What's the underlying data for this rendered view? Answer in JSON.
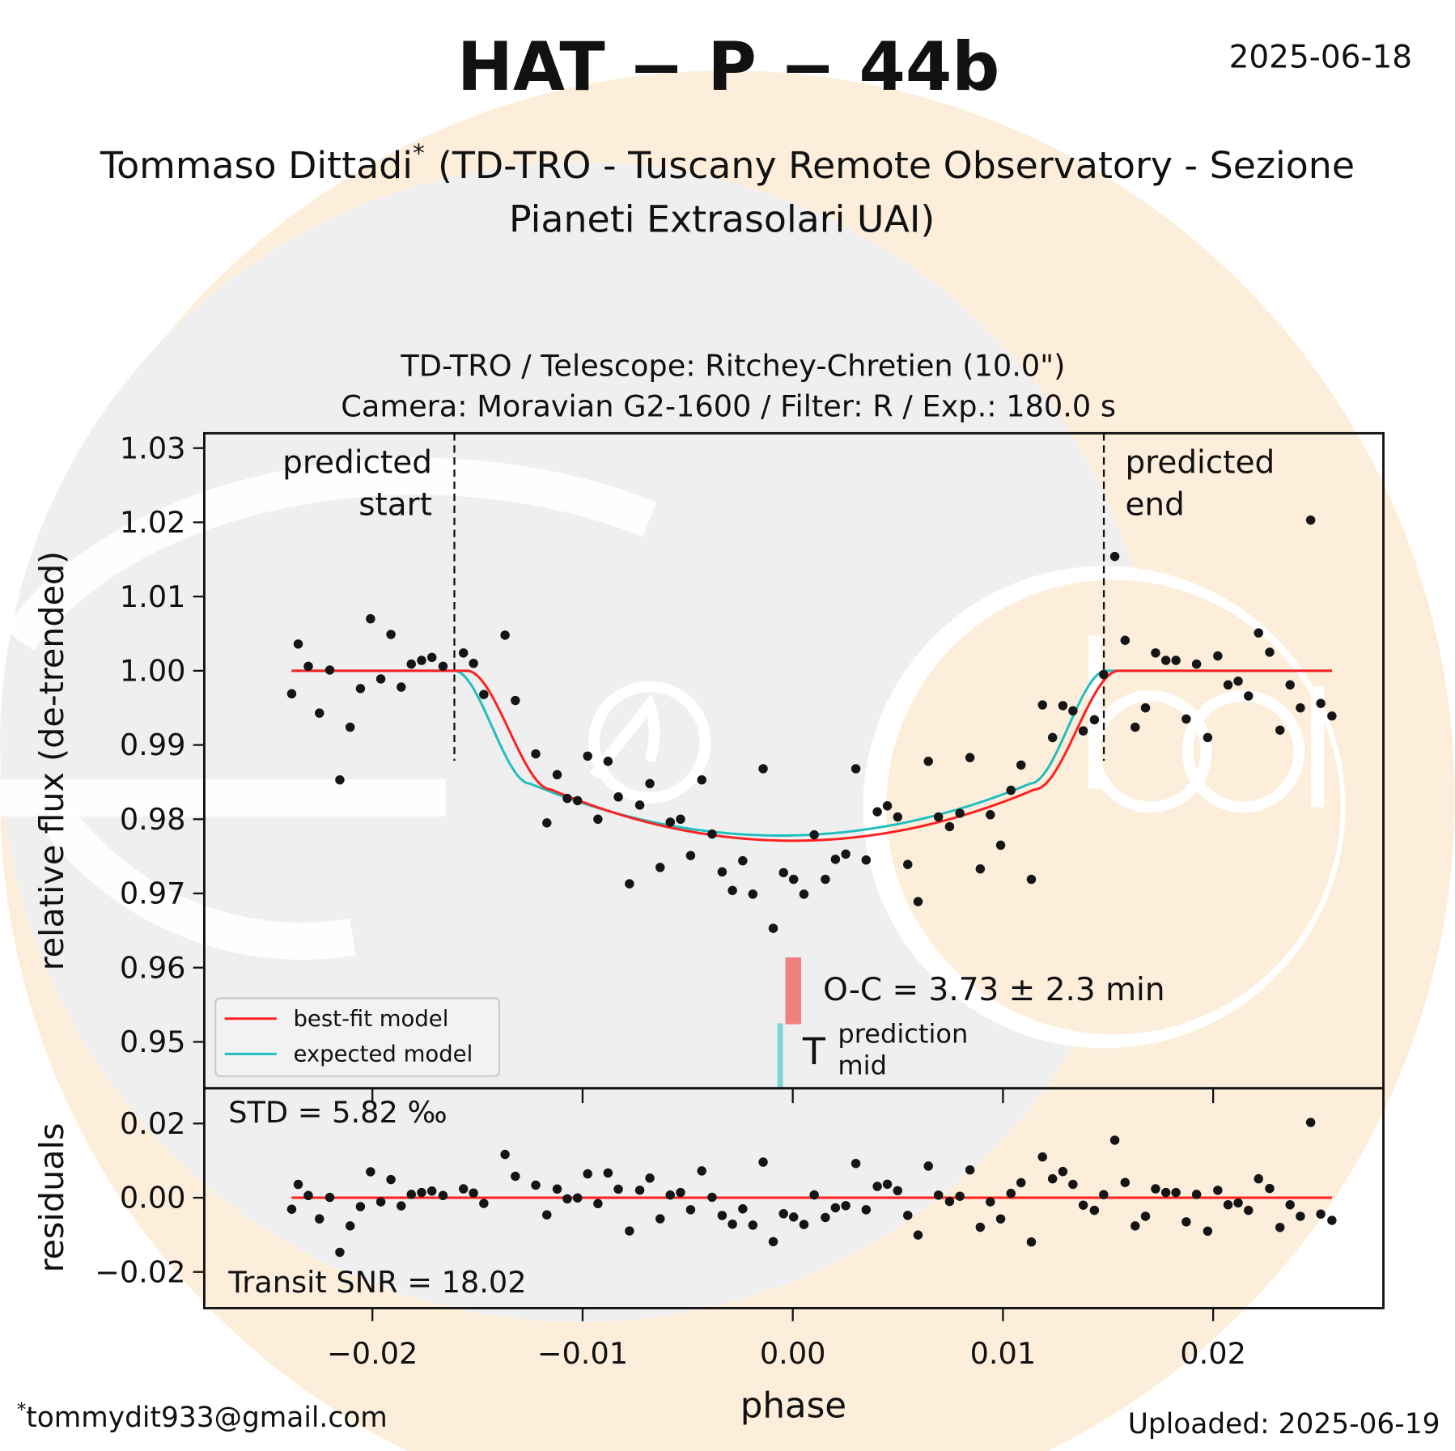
{
  "header": {
    "title": "HAT − P − 44b",
    "date": "2025-06-18",
    "author": "Tommaso Dittadi",
    "author_mark": "*",
    "observatory_line1": "(TD-TRO - Tuscany Remote Observatory - Sezione",
    "observatory_line2": "Pianeti Extrasolari UAI)"
  },
  "footer": {
    "email_mark": "*",
    "email": "tommydit933@gmail.com",
    "uploaded": "Uploaded: 2025-06-19"
  },
  "chart_data": {
    "type": "scatter",
    "subtitle_line1": "TD-TRO / Telescope: Ritchey-Chretien (10.0\")",
    "subtitle_line2": "Camera: Moravian G2-1600 / Filter: R / Exp.: 180.0 s",
    "xlabel": "phase",
    "ylabel": "relative flux (de-trended)",
    "residuals_ylabel": "residuals",
    "xlim": [
      -0.028,
      0.0281
    ],
    "ylim": [
      0.94375,
      1.032
    ],
    "residuals_ylim": [
      -0.02975,
      0.0295
    ],
    "xticks": [
      {
        "v": -0.02,
        "label": "−0.02"
      },
      {
        "v": -0.01,
        "label": "−0.01"
      },
      {
        "v": 0.0,
        "label": "0.00"
      },
      {
        "v": 0.01,
        "label": "0.01"
      },
      {
        "v": 0.02,
        "label": "0.02"
      }
    ],
    "yticks": [
      {
        "v": 1.03,
        "label": "1.03"
      },
      {
        "v": 1.02,
        "label": "1.02"
      },
      {
        "v": 1.01,
        "label": "1.01"
      },
      {
        "v": 1.0,
        "label": "1.00"
      },
      {
        "v": 0.99,
        "label": "0.99"
      },
      {
        "v": 0.98,
        "label": "0.98"
      },
      {
        "v": 0.97,
        "label": "0.97"
      },
      {
        "v": 0.96,
        "label": "0.96"
      },
      {
        "v": 0.95,
        "label": "0.95"
      }
    ],
    "residuals_yticks": [
      {
        "v": 0.02,
        "label": "0.02"
      },
      {
        "v": 0.0,
        "label": "0.00"
      },
      {
        "v": -0.02,
        "label": "−0.02"
      }
    ],
    "predicted_start": {
      "phase": -0.0161,
      "label1": "predicted",
      "label2": "start"
    },
    "predicted_end": {
      "phase": 0.0148,
      "label1": "predicted",
      "label2": "end"
    },
    "legend": {
      "placement": "lower-left",
      "items": [
        {
          "label": "best-fit model",
          "color": "#ff2020"
        },
        {
          "label": "expected model",
          "color": "#20bfbf"
        }
      ]
    },
    "models": {
      "best_fit": {
        "t0": 0.0,
        "half_duration": 0.0155,
        "ingress": 0.004,
        "depth_center": 0.0229,
        "depth_edge": 0.016,
        "color": "#ff2020"
      },
      "expected": {
        "t0": -0.0006,
        "half_duration": 0.0155,
        "ingress": 0.0036,
        "depth_center": 0.0222,
        "depth_edge": 0.0152,
        "color": "#20bfbf"
      }
    },
    "oc_text": "O-C = 3.73 ± 2.3 min",
    "oc_marker": {
      "phase": 0.0,
      "color": "#f08080"
    },
    "mid_marker": {
      "phase": -0.0006,
      "color": "#80d4d4",
      "T": "T",
      "sup": "prediction",
      "sub": "mid"
    },
    "std_text": "STD = 5.82 ‰",
    "snr_text": "Transit SNR = 18.02",
    "points_phase": [
      -0.02384,
      -0.02353,
      -0.02305,
      -0.02252,
      -0.02203,
      -0.02155,
      -0.02106,
      -0.02057,
      -0.02009,
      -0.0196,
      -0.01912,
      -0.01863,
      -0.01815,
      -0.01766,
      -0.01717,
      -0.01664,
      -0.01567,
      -0.01519,
      -0.0147,
      -0.01369,
      -0.0132,
      -0.01223,
      -0.0117,
      -0.01121,
      -0.01073,
      -0.01024,
      -0.00976,
      -0.00927,
      -0.00879,
      -0.0083,
      -0.00777,
      -0.00728,
      -0.0068,
      -0.00631,
      -0.00583,
      -0.00534,
      -0.00486,
      -0.00433,
      -0.00384,
      -0.00336,
      -0.00287,
      -0.00238,
      -0.0019,
      -0.00141,
      -0.00093,
      -0.00044,
      4e-05,
      0.00053,
      0.00102,
      0.00155,
      0.00203,
      0.00252,
      0.003,
      0.00349,
      0.00402,
      0.0045,
      0.00499,
      0.00547,
      0.00596,
      0.00645,
      0.00693,
      0.00746,
      0.00795,
      0.00843,
      0.00892,
      0.0094,
      0.00989,
      0.01038,
      0.01086,
      0.01135,
      0.01188,
      0.01236,
      0.01285,
      0.01333,
      0.01382,
      0.01435,
      0.01479,
      0.01532,
      0.01581,
      0.01629,
      0.01678,
      0.01726,
      0.01775,
      0.01823,
      0.01872,
      0.01921,
      0.01974,
      0.02022,
      0.02071,
      0.02119,
      0.02168,
      0.02216,
      0.02269,
      0.02318,
      0.02366,
      0.02415,
      0.02464,
      0.02512,
      0.02565
    ],
    "points_flux": [
      0.9969,
      1.0036,
      1.0006,
      0.9943,
      1.0001,
      0.9853,
      0.9924,
      0.9976,
      1.007,
      0.9989,
      1.0049,
      0.9978,
      1.0009,
      1.0014,
      1.0018,
      1.0006,
      1.0024,
      1.001,
      0.9968,
      1.0048,
      0.996,
      0.9888,
      0.9795,
      0.986,
      0.9828,
      0.9825,
      0.9885,
      0.98,
      0.9878,
      0.983,
      0.9713,
      0.9819,
      0.9848,
      0.9735,
      0.9796,
      0.98,
      0.9751,
      0.9853,
      0.978,
      0.9729,
      0.9704,
      0.9744,
      0.9699,
      0.9868,
      0.9653,
      0.9728,
      0.9719,
      0.9699,
      0.9779,
      0.9719,
      0.9746,
      0.9753,
      0.9868,
      0.9745,
      0.981,
      0.9818,
      0.9803,
      0.9739,
      0.9689,
      0.9878,
      0.9803,
      0.979,
      0.9808,
      0.9883,
      0.9733,
      0.9806,
      0.9765,
      0.9839,
      0.9873,
      0.9719,
      0.9954,
      0.991,
      0.9953,
      0.9946,
      0.9919,
      0.9934,
      0.9995,
      1.0154,
      1.0041,
      0.9924,
      0.995,
      1.0024,
      1.0014,
      1.0014,
      0.9935,
      1.0009,
      0.991,
      1.002,
      0.9981,
      0.9986,
      0.9966,
      1.0051,
      1.0025,
      0.992,
      0.9981,
      0.995,
      1.0203,
      0.9956,
      0.9939
    ]
  }
}
